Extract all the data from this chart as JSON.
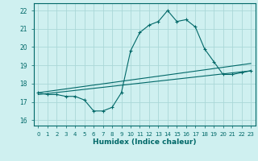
{
  "title": "",
  "xlabel": "Humidex (Indice chaleur)",
  "ylabel": "",
  "bg_color": "#cff0f0",
  "grid_color": "#aad8d8",
  "line_color": "#006868",
  "xlim": [
    -0.5,
    23.5
  ],
  "ylim": [
    15.7,
    22.4
  ],
  "yticks": [
    16,
    17,
    18,
    19,
    20,
    21,
    22
  ],
  "xticks": [
    0,
    1,
    2,
    3,
    4,
    5,
    6,
    7,
    8,
    9,
    10,
    11,
    12,
    13,
    14,
    15,
    16,
    17,
    18,
    19,
    20,
    21,
    22,
    23
  ],
  "series1_x": [
    0,
    1,
    2,
    3,
    4,
    5,
    6,
    7,
    8,
    9,
    10,
    11,
    12,
    13,
    14,
    15,
    16,
    17,
    18,
    19,
    20,
    21,
    22,
    23
  ],
  "series1_y": [
    17.5,
    17.4,
    17.4,
    17.3,
    17.3,
    17.1,
    16.5,
    16.5,
    16.7,
    17.5,
    19.8,
    20.8,
    21.2,
    21.4,
    22.0,
    21.4,
    21.5,
    21.1,
    19.9,
    19.2,
    18.5,
    18.5,
    18.6,
    18.7
  ],
  "series2_x": [
    0,
    23
  ],
  "series2_y": [
    17.5,
    19.1
  ],
  "series3_x": [
    0,
    23
  ],
  "series3_y": [
    17.4,
    18.7
  ]
}
